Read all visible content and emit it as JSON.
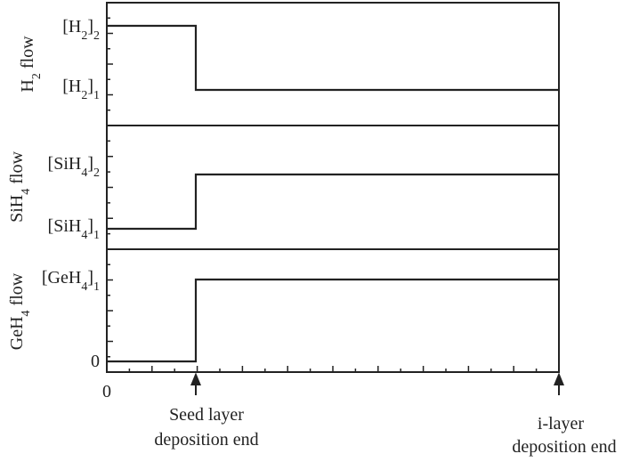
{
  "colors": {
    "stroke": "#222222",
    "background": "#ffffff"
  },
  "panels": [
    {
      "id": "h2",
      "ylabel": {
        "base": "H",
        "sub": "2",
        "rest": " flow"
      },
      "levels": [
        {
          "open": "[H",
          "sub": "2",
          "close": "]",
          "index": "2"
        },
        {
          "open": "[H",
          "sub": "2",
          "close": "]",
          "index": "1"
        }
      ],
      "profile": {
        "before_seed_end": "[H2]2",
        "after_seed_end": "[H2]1"
      }
    },
    {
      "id": "sih4",
      "ylabel": {
        "base": "SiH",
        "sub": "4",
        "rest": " flow"
      },
      "levels": [
        {
          "open": "[SiH",
          "sub": "4",
          "close": "]",
          "index": "2"
        },
        {
          "open": "[SiH",
          "sub": "4",
          "close": "]",
          "index": "1"
        }
      ],
      "profile": {
        "before_seed_end": "[SiH4]1",
        "after_seed_end": "[SiH4]2"
      }
    },
    {
      "id": "geh4",
      "ylabel": {
        "base": "GeH",
        "sub": "4",
        "rest": " flow"
      },
      "levels": [
        {
          "open": "[GeH",
          "sub": "4",
          "close": "]",
          "index": "1"
        },
        {
          "text": "0"
        }
      ],
      "profile": {
        "before_seed_end": "0",
        "after_seed_end": "[GeH4]1"
      }
    }
  ],
  "x_axis": {
    "origin_label": "0",
    "events": [
      {
        "line1": "Seed layer",
        "line2": "deposition end"
      },
      {
        "line1": "i-layer",
        "line2": "deposition end"
      }
    ]
  }
}
